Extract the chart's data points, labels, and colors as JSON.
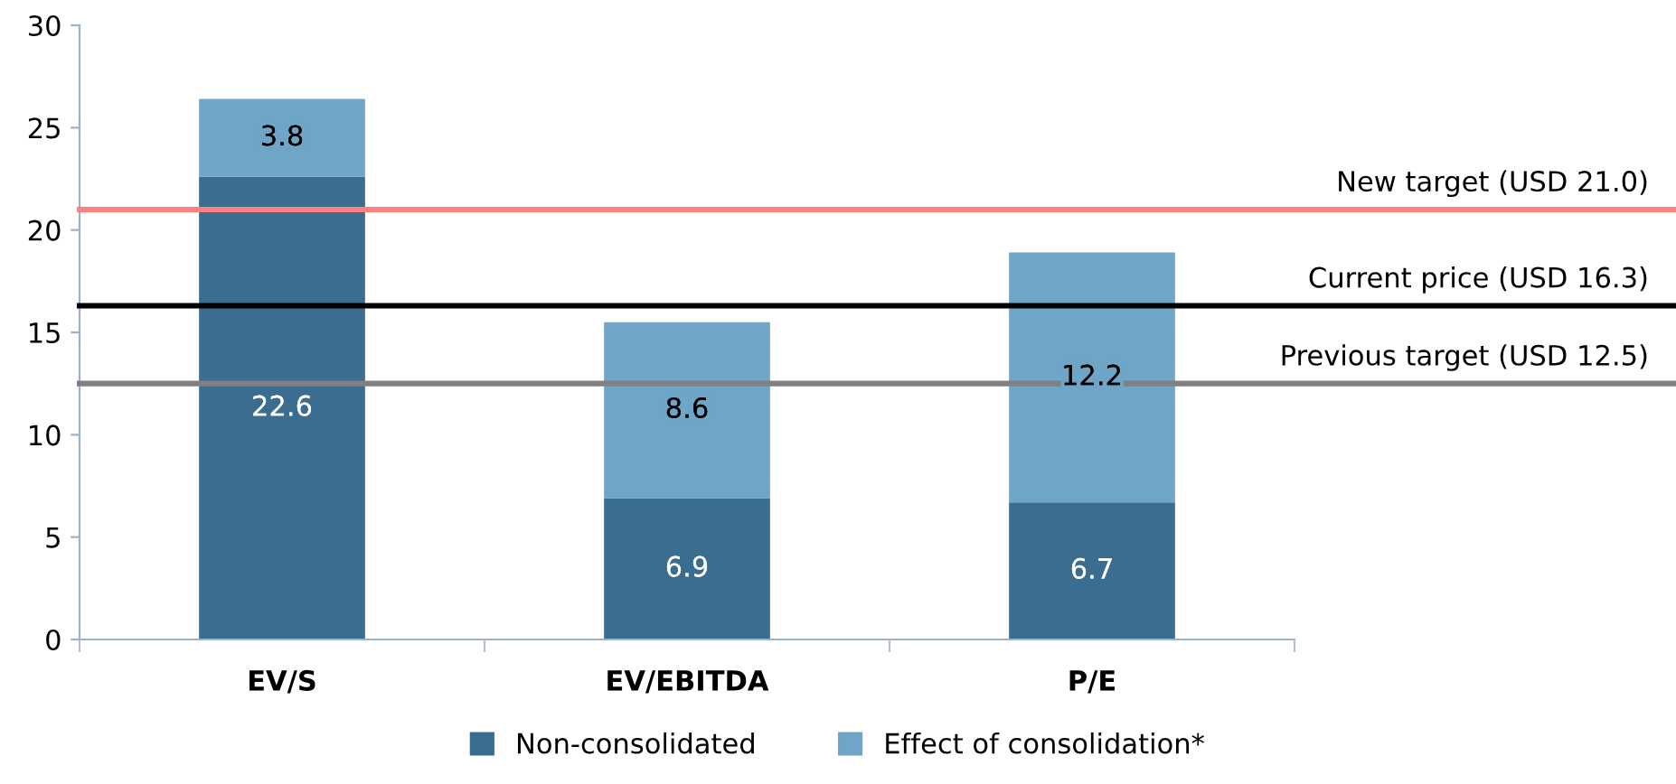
{
  "chart_data": {
    "type": "bar",
    "stacked": true,
    "categories": [
      "EV/S",
      "EV/EBITDA",
      "P/E"
    ],
    "series": [
      {
        "name": "Non-consolidated",
        "color": "#3a6d8f",
        "values": [
          22.6,
          6.9,
          6.7
        ]
      },
      {
        "name": "Effect of consolidation*",
        "color": "#6fa5c6",
        "values": [
          3.8,
          8.6,
          12.2
        ]
      }
    ],
    "ylim": [
      0,
      30
    ],
    "yticks": [
      0,
      5,
      10,
      15,
      20,
      25,
      30
    ],
    "grid": false,
    "legend": "bottom",
    "data_labels": true,
    "ref_lines": [
      {
        "axis": "y",
        "value": 21.0,
        "label": "New target (USD 21.0)",
        "color": "#ff8080"
      },
      {
        "axis": "y",
        "value": 16.3,
        "label": "Current price (USD 16.3)",
        "color": "#000000"
      },
      {
        "axis": "y",
        "value": 12.5,
        "label": "Previous target (USD 12.5)",
        "color": "#808080"
      }
    ]
  }
}
